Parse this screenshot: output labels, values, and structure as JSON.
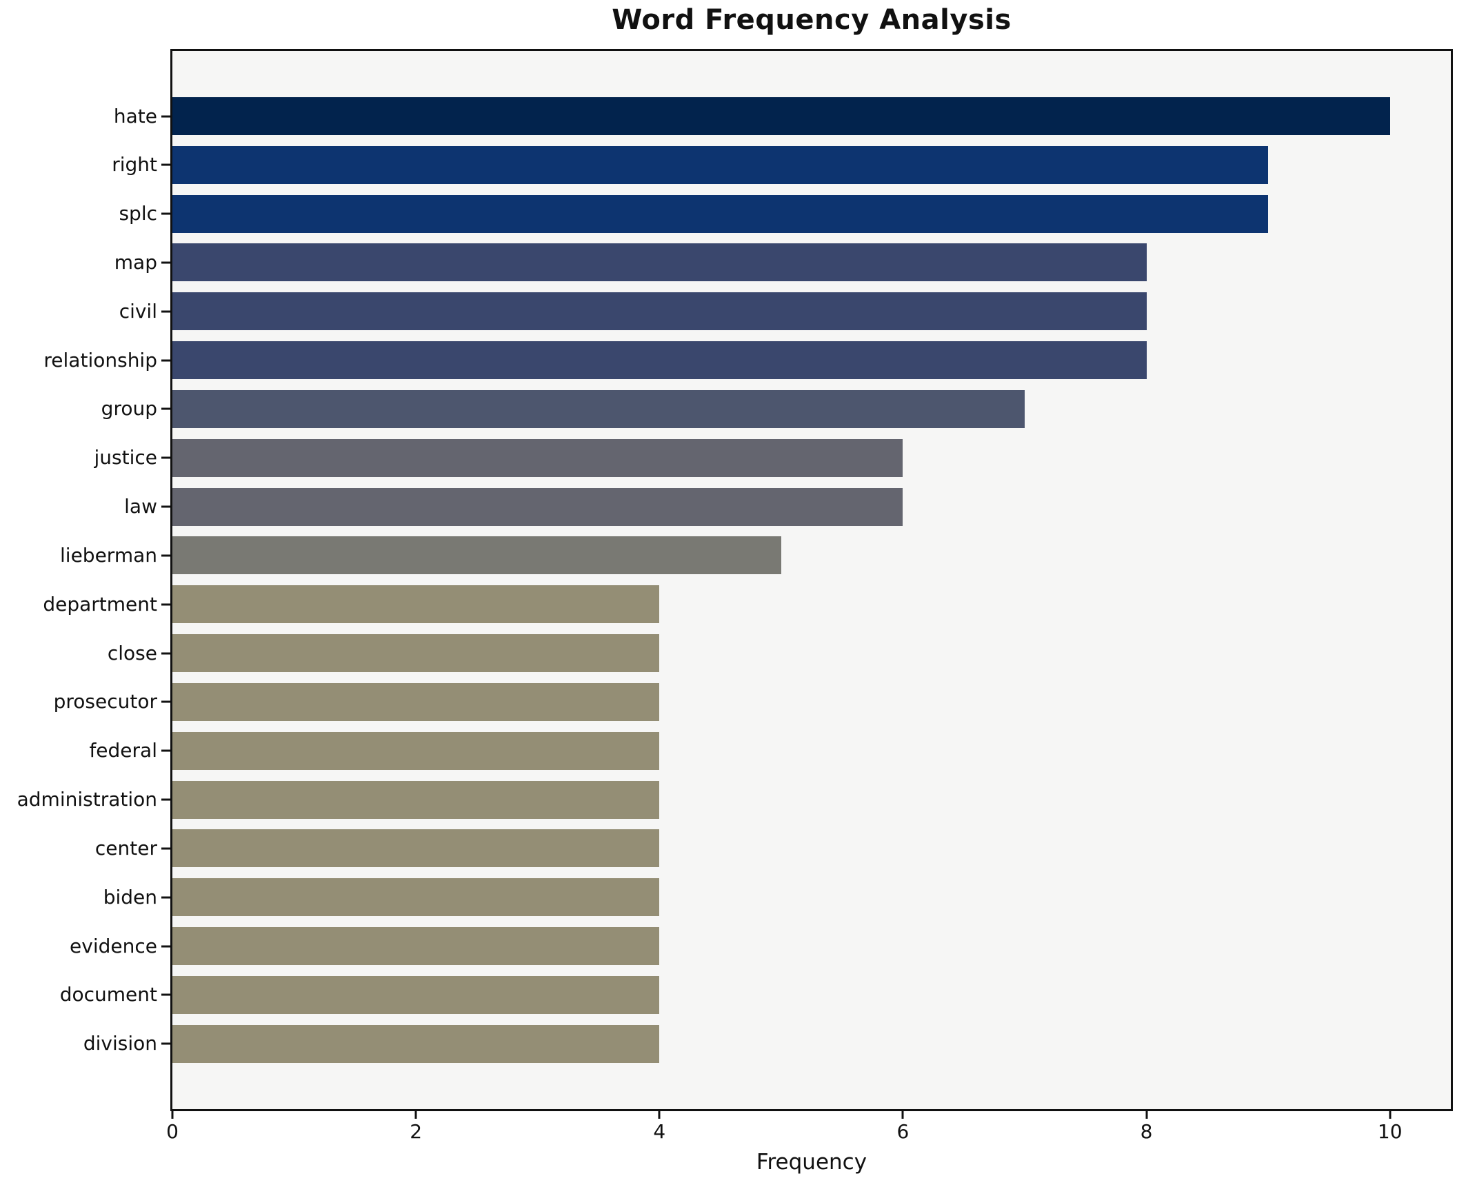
{
  "chart_data": {
    "type": "bar",
    "orientation": "horizontal",
    "title": "Word Frequency Analysis",
    "xlabel": "Frequency",
    "ylabel": "",
    "categories": [
      "hate",
      "right",
      "splc",
      "map",
      "civil",
      "relationship",
      "group",
      "justice",
      "law",
      "lieberman",
      "department",
      "close",
      "prosecutor",
      "federal",
      "administration",
      "center",
      "biden",
      "evidence",
      "document",
      "division"
    ],
    "values": [
      10,
      9,
      9,
      8,
      8,
      8,
      7,
      6,
      6,
      5,
      4,
      4,
      4,
      4,
      4,
      4,
      4,
      4,
      4,
      4
    ],
    "xlim": [
      0,
      10.5
    ],
    "xticks": [
      0,
      2,
      4,
      6,
      8,
      10
    ],
    "grid": false,
    "legend": false,
    "colors": {
      "bar_by_value": {
        "10": "#02234d",
        "9": "#0d3470",
        "8": "#3a476d",
        "7": "#4d566e",
        "6": "#64656f",
        "5": "#797973",
        "4": "#948e75"
      },
      "plot_background": "#f6f6f5",
      "figure_background": "#ffffff",
      "spine": "#111111",
      "text": "#111111"
    }
  }
}
